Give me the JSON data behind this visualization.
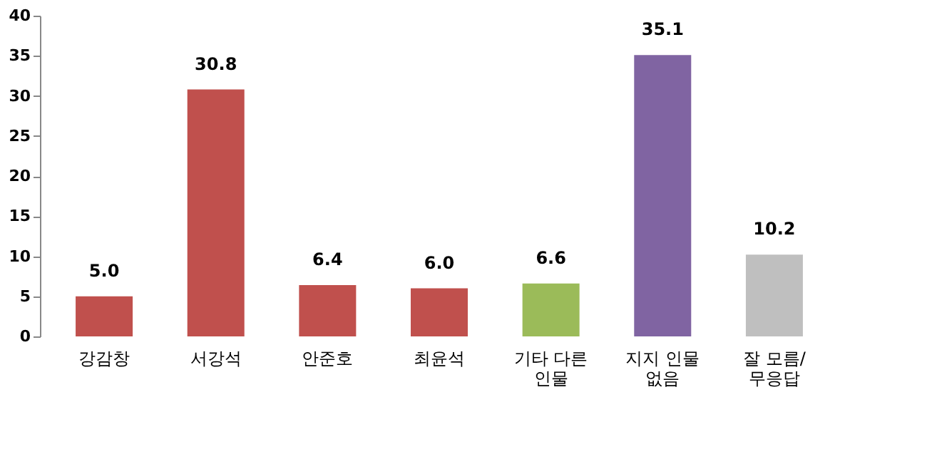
{
  "chart_data": {
    "type": "bar",
    "categories": [
      "강감창",
      "서강석",
      "안준호",
      "최윤석",
      "기타 다른\n인물",
      "지지 인물\n없음",
      "잘 모름/\n무응답"
    ],
    "values": [
      5.0,
      30.8,
      6.4,
      6.0,
      6.6,
      35.1,
      10.2
    ],
    "value_labels": [
      "5.0",
      "30.8",
      "6.4",
      "6.0",
      "6.6",
      "35.1",
      "10.2"
    ],
    "colors": [
      "#c0504d",
      "#c0504d",
      "#c0504d",
      "#c0504d",
      "#9bbb59",
      "#8064a2",
      "#bfbfbf"
    ],
    "ylim": [
      0,
      40
    ],
    "yticks": [
      0,
      5,
      10,
      15,
      20,
      25,
      30,
      35,
      40
    ],
    "grid": false
  }
}
